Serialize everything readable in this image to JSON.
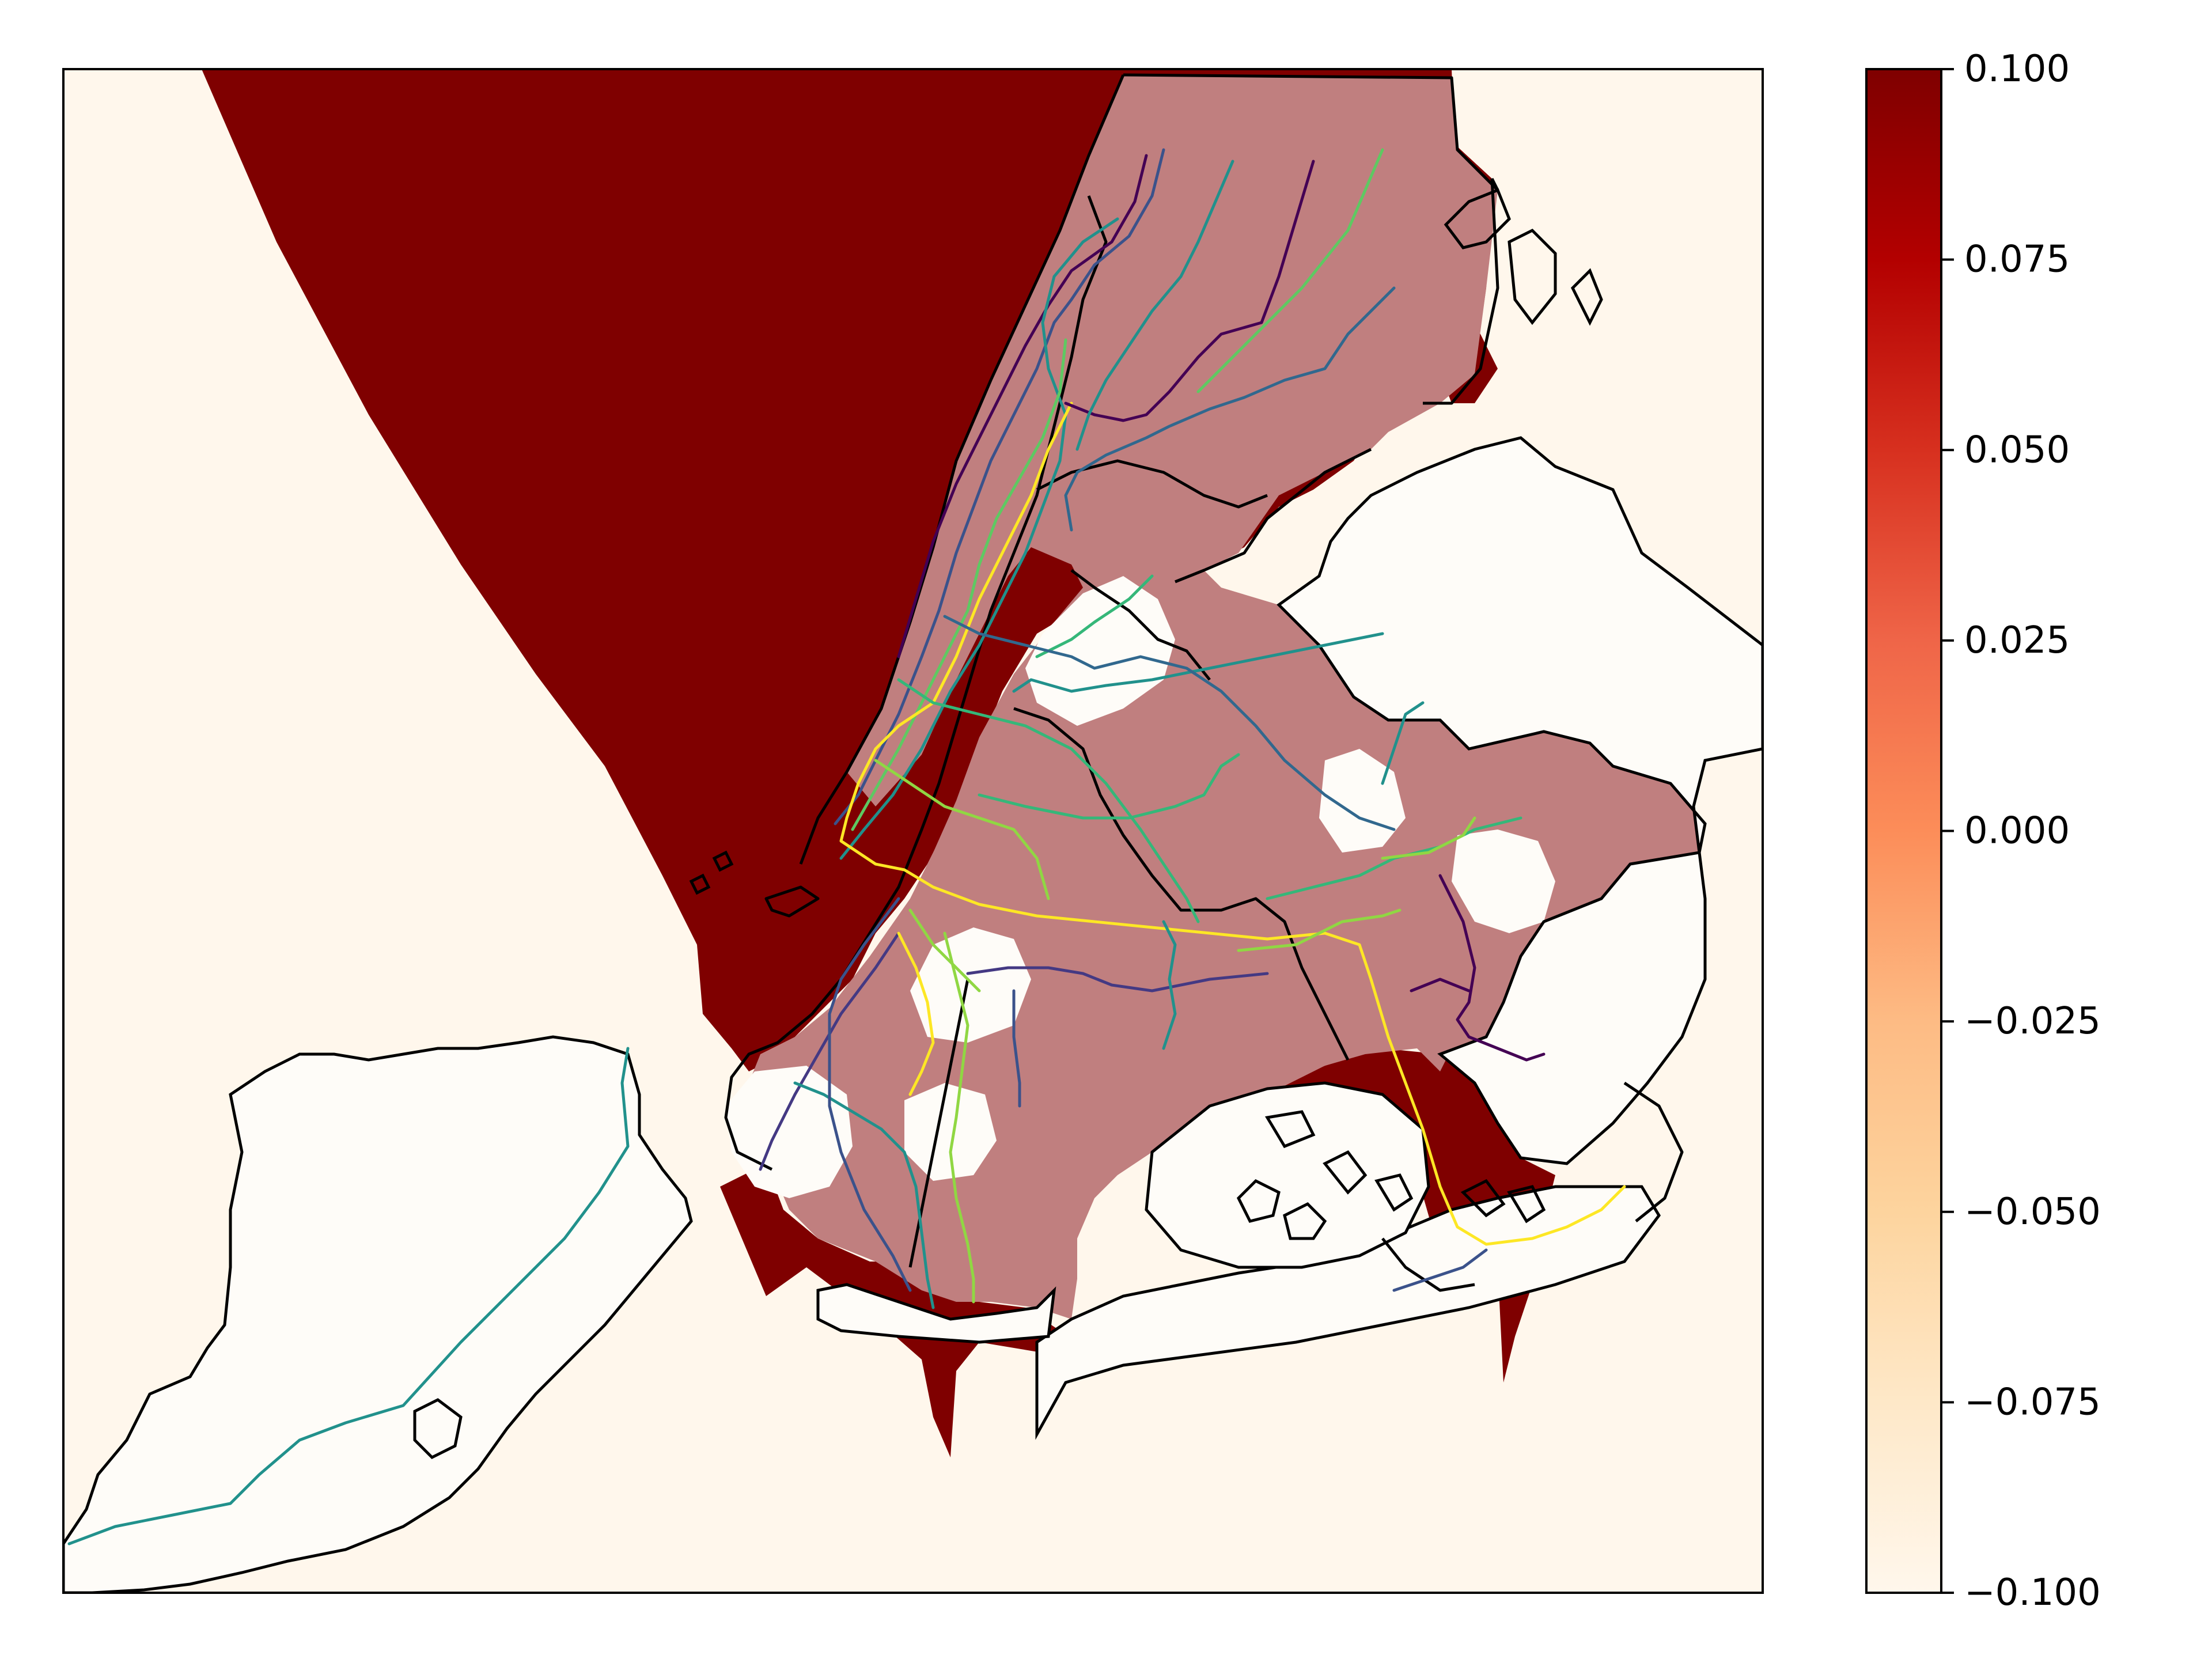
{
  "figure": {
    "colormap": "OrRd",
    "colors": {
      "background_low": "#fff7ec",
      "high": "#7f0000",
      "mid_overlay": "#c07f7f",
      "zero_value_area": "#fefcf8",
      "coastline": "#000000"
    }
  },
  "colorbar": {
    "min": -0.1,
    "max": 0.1,
    "ticks": [
      {
        "value": 0.1,
        "label": "0.100"
      },
      {
        "value": 0.075,
        "label": "0.075"
      },
      {
        "value": 0.05,
        "label": "0.050"
      },
      {
        "value": 0.025,
        "label": "0.025"
      },
      {
        "value": 0.0,
        "label": "0.000"
      },
      {
        "value": -0.025,
        "label": "−0.025"
      },
      {
        "value": -0.05,
        "label": "−0.050"
      },
      {
        "value": -0.075,
        "label": "−0.075"
      },
      {
        "value": -0.1,
        "label": "−0.100"
      }
    ],
    "gradient_stops": [
      "#fff7ec",
      "#fee8c8",
      "#fdd49e",
      "#fdbb84",
      "#fc8d59",
      "#ef6548",
      "#d7301f",
      "#b30000",
      "#7f0000"
    ]
  },
  "subway_line_colors": [
    "#440154",
    "#3b528b",
    "#21918c",
    "#5ec962",
    "#fde725",
    "#31688e",
    "#35b779",
    "#90d743",
    "#443983"
  ]
}
